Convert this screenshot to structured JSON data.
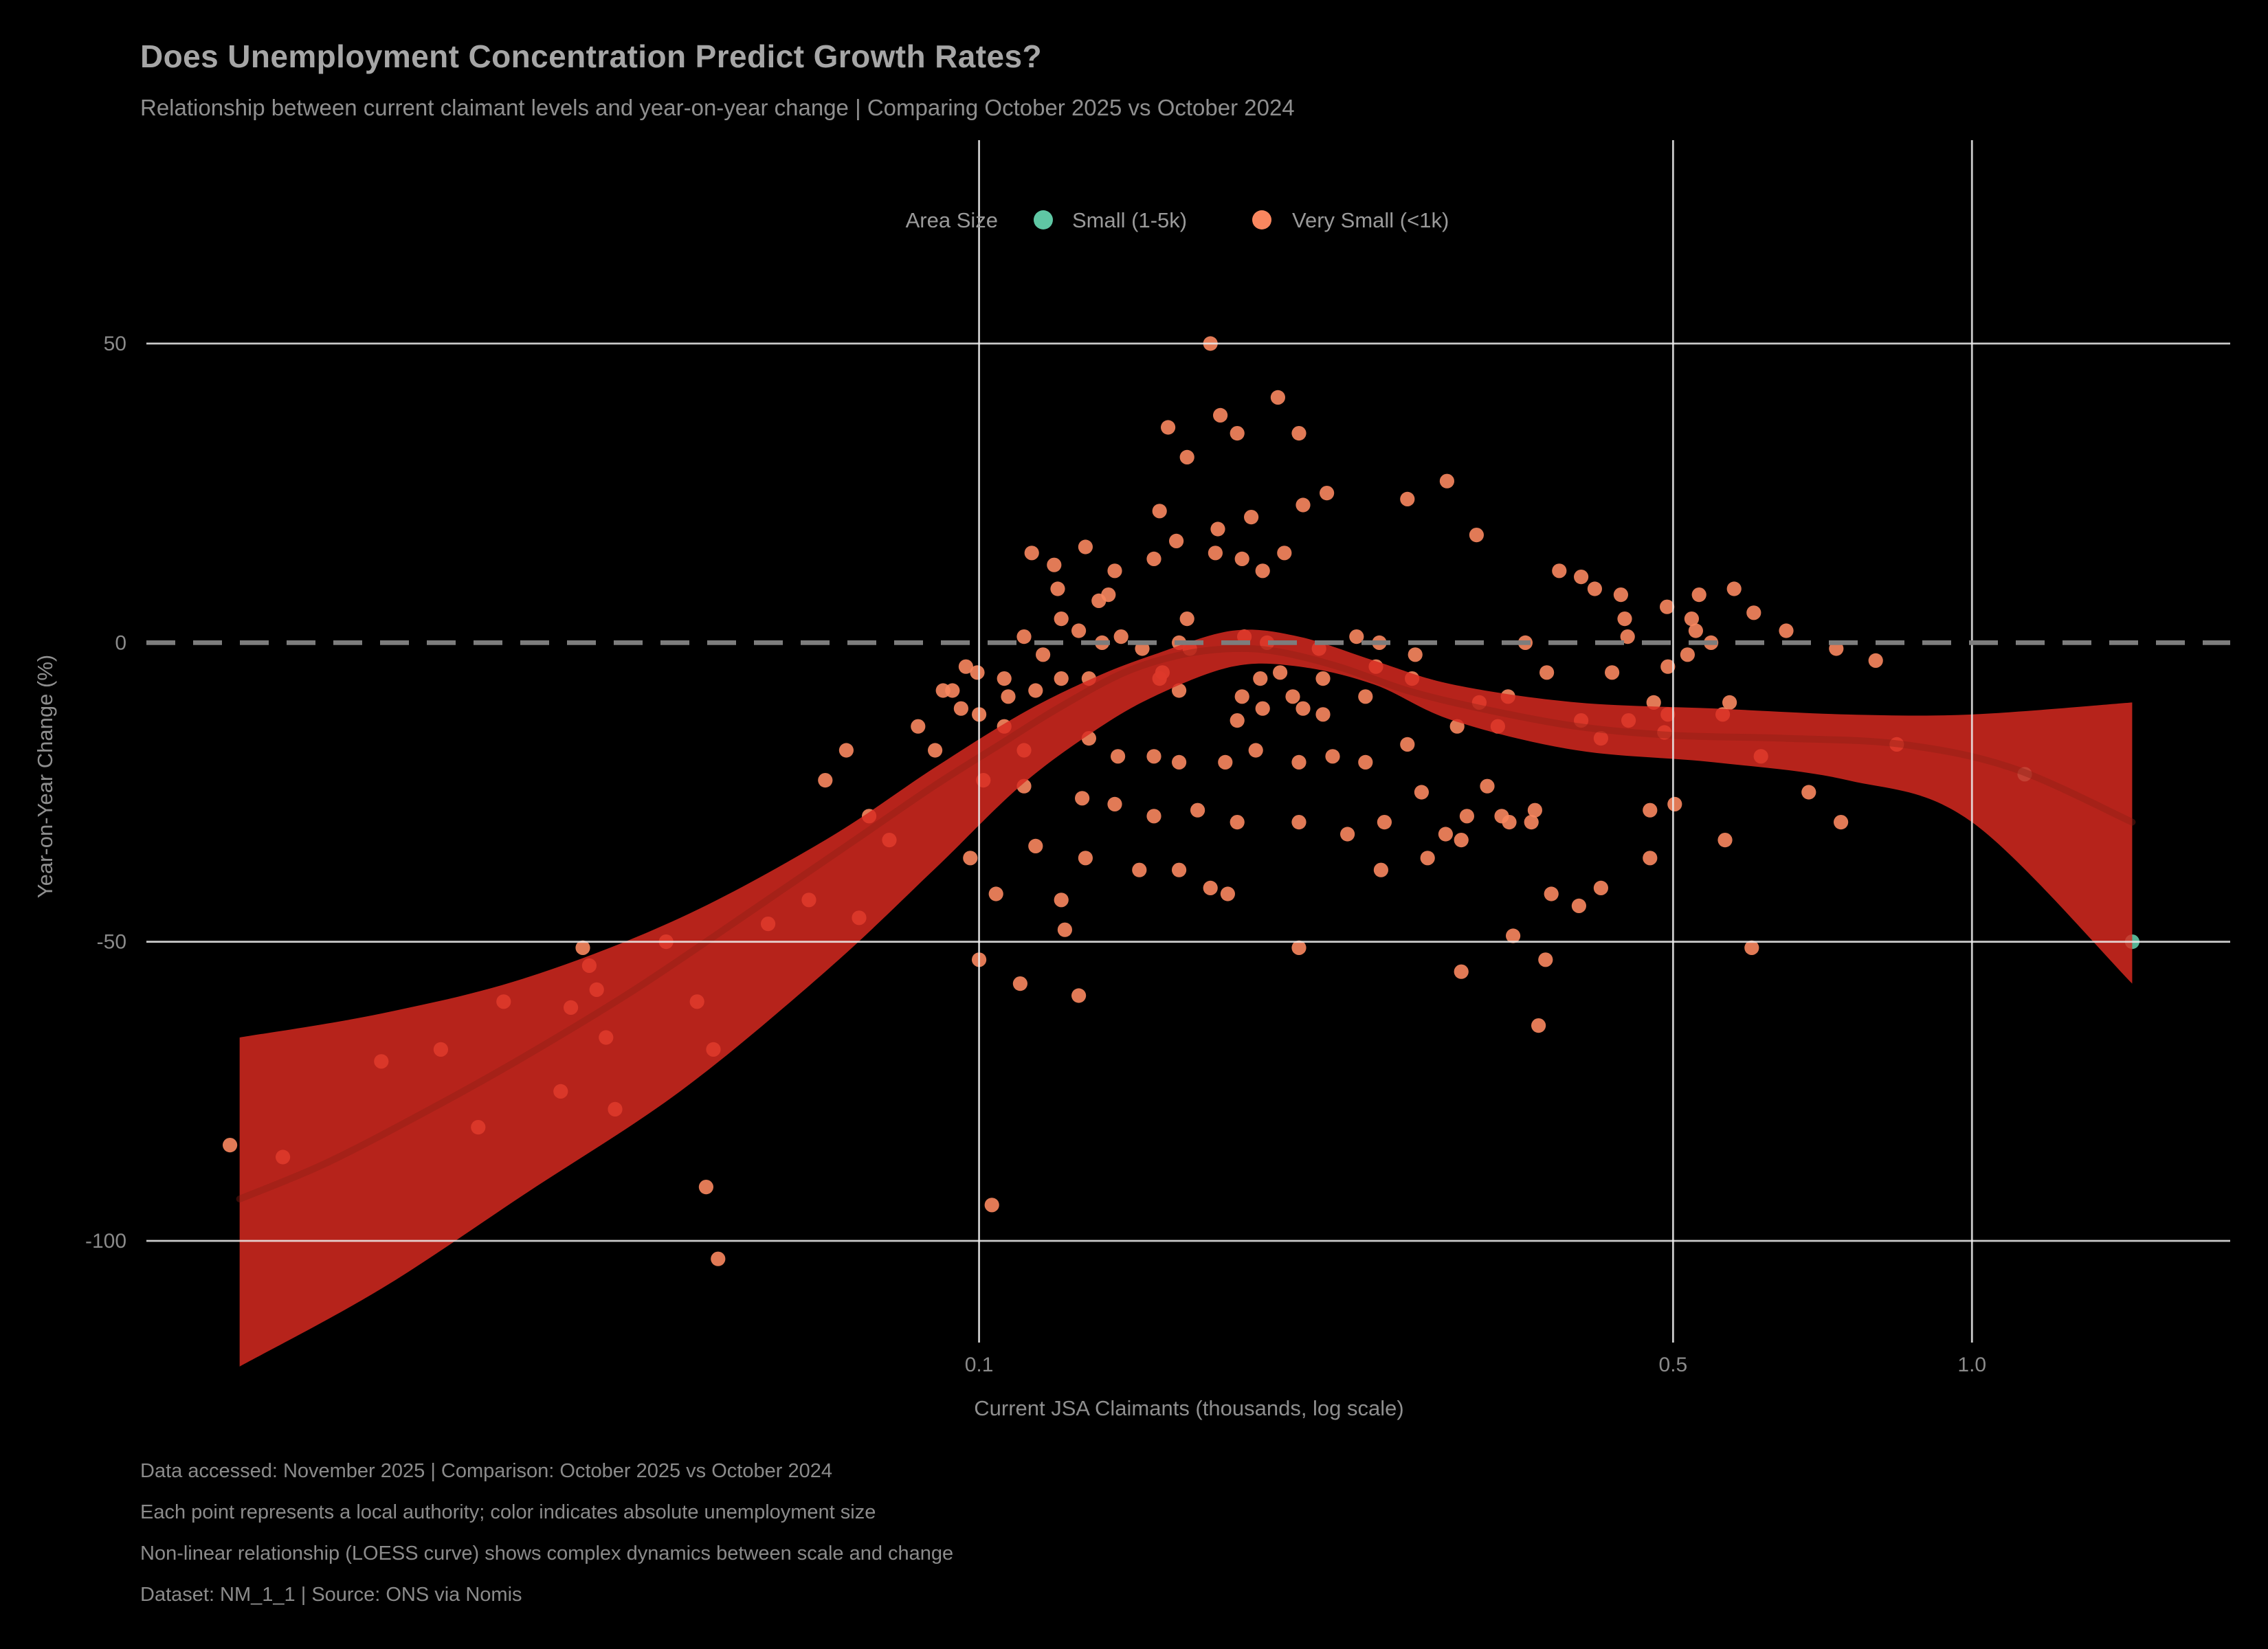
{
  "title": {
    "text": "Does Unemployment Concentration Predict Growth Rates?",
    "subtitle": "Relationship between current claimant levels and year-on-year change | Comparing October 2025 vs October 2024"
  },
  "legend": {
    "title": "Area Size",
    "items": [
      {
        "label": "Small (1-5k)",
        "color": "#5fc7a4"
      },
      {
        "label": "Very Small (<1k)",
        "color": "#f9875f"
      }
    ]
  },
  "colors": {
    "background": "#000000",
    "band": "#d92a20",
    "loess_line": "#8c1f15",
    "grid": "#ededed",
    "zero_line": "#7d7d7d",
    "title": "#a6a6a6",
    "text": "#8f8f8f",
    "tick": "#8a8a8a"
  },
  "chart_data": {
    "type": "scatter",
    "xlabel": "Current JSA Claimants (thousands, log scale)",
    "ylabel": "Year-on-Year Change (%)",
    "x_scale": "log",
    "grid": true,
    "legend_position": "top",
    "xlim": [
      0.0145,
      1.82
    ],
    "ylim": [
      -117,
      84
    ],
    "zero_line": 0,
    "x_ticks": [
      {
        "v": 0.1,
        "label": "0.1"
      },
      {
        "v": 0.5,
        "label": "0.5"
      },
      {
        "v": 1.0,
        "label": "1.0"
      }
    ],
    "y_ticks": [
      {
        "v": 50,
        "label": "50"
      },
      {
        "v": 0,
        "label": "0"
      },
      {
        "v": -50,
        "label": "-50"
      },
      {
        "v": -100,
        "label": "-100"
      }
    ],
    "series": [
      {
        "name": "Very Small (<1k)",
        "color": "#f9875f",
        "points": [
          [
            0.0176,
            -84
          ],
          [
            0.0199,
            -86
          ],
          [
            0.025,
            -70
          ],
          [
            0.0287,
            -68
          ],
          [
            0.0313,
            -81
          ],
          [
            0.0332,
            -60
          ],
          [
            0.0388,
            -61
          ],
          [
            0.0399,
            -51
          ],
          [
            0.0405,
            -54
          ],
          [
            0.0412,
            -58
          ],
          [
            0.0421,
            -66
          ],
          [
            0.0379,
            -75
          ],
          [
            0.043,
            -78
          ],
          [
            0.0484,
            -50
          ],
          [
            0.052,
            -60
          ],
          [
            0.054,
            -68
          ],
          [
            0.0531,
            -91
          ],
          [
            0.0546,
            -103
          ],
          [
            0.0613,
            -47
          ],
          [
            0.0674,
            -43
          ],
          [
            0.07,
            -23
          ],
          [
            0.0735,
            -18
          ],
          [
            0.0757,
            -46
          ],
          [
            0.0775,
            -29
          ],
          [
            0.0812,
            -33
          ],
          [
            0.0868,
            -14
          ],
          [
            0.0903,
            -18
          ],
          [
            0.092,
            -8
          ],
          [
            0.0959,
            -11
          ],
          [
            0.0996,
            -5
          ],
          [
            0.171,
            50
          ],
          [
            0.155,
            36
          ],
          [
            0.175,
            38
          ],
          [
            0.182,
            35
          ],
          [
            0.2,
            41
          ],
          [
            0.21,
            35
          ],
          [
            0.162,
            31
          ],
          [
            0.152,
            22
          ],
          [
            0.158,
            17
          ],
          [
            0.137,
            12
          ],
          [
            0.135,
            8
          ],
          [
            0.15,
            14
          ],
          [
            0.173,
            15
          ],
          [
            0.174,
            19
          ],
          [
            0.188,
            21
          ],
          [
            0.184,
            14
          ],
          [
            0.193,
            12
          ],
          [
            0.203,
            15
          ],
          [
            0.212,
            23
          ],
          [
            0.224,
            25
          ],
          [
            0.27,
            24
          ],
          [
            0.296,
            27
          ],
          [
            0.317,
            18
          ],
          [
            0.12,
            9
          ],
          [
            0.121,
            4
          ],
          [
            0.132,
            7
          ],
          [
            0.113,
            15
          ],
          [
            0.119,
            13
          ],
          [
            0.128,
            16
          ],
          [
            0.162,
            4
          ],
          [
            0.111,
            1
          ],
          [
            0.116,
            -2
          ],
          [
            0.126,
            2
          ],
          [
            0.133,
            0
          ],
          [
            0.139,
            1
          ],
          [
            0.146,
            -1
          ],
          [
            0.159,
            0
          ],
          [
            0.163,
            -1
          ],
          [
            0.185,
            1
          ],
          [
            0.195,
            0
          ],
          [
            0.22,
            -1
          ],
          [
            0.24,
            1
          ],
          [
            0.253,
            0
          ],
          [
            0.275,
            -2
          ],
          [
            0.384,
            12
          ],
          [
            0.404,
            11
          ],
          [
            0.417,
            9
          ],
          [
            0.443,
            8
          ],
          [
            0.447,
            4
          ],
          [
            0.45,
            1
          ],
          [
            0.355,
            0
          ],
          [
            0.493,
            6
          ],
          [
            0.531,
            8
          ],
          [
            0.522,
            4
          ],
          [
            0.527,
            2
          ],
          [
            0.546,
            0
          ],
          [
            0.517,
            -2
          ],
          [
            0.576,
            9
          ],
          [
            0.603,
            5
          ],
          [
            0.65,
            2
          ],
          [
            0.73,
            -1
          ],
          [
            0.8,
            -3
          ],
          [
            0.097,
            -4
          ],
          [
            0.106,
            -6
          ],
          [
            0.094,
            -8
          ],
          [
            0.1,
            -12
          ],
          [
            0.107,
            -9
          ],
          [
            0.114,
            -8
          ],
          [
            0.121,
            -6
          ],
          [
            0.129,
            -6
          ],
          [
            0.153,
            -5
          ],
          [
            0.152,
            -6
          ],
          [
            0.159,
            -8
          ],
          [
            0.184,
            -9
          ],
          [
            0.192,
            -6
          ],
          [
            0.201,
            -5
          ],
          [
            0.182,
            -13
          ],
          [
            0.193,
            -11
          ],
          [
            0.212,
            -11
          ],
          [
            0.222,
            -12
          ],
          [
            0.207,
            -9
          ],
          [
            0.222,
            -6
          ],
          [
            0.245,
            -9
          ],
          [
            0.251,
            -4
          ],
          [
            0.273,
            -6
          ],
          [
            0.106,
            -14
          ],
          [
            0.111,
            -18
          ],
          [
            0.129,
            -16
          ],
          [
            0.138,
            -19
          ],
          [
            0.15,
            -19
          ],
          [
            0.159,
            -20
          ],
          [
            0.177,
            -20
          ],
          [
            0.19,
            -18
          ],
          [
            0.21,
            -20
          ],
          [
            0.227,
            -19
          ],
          [
            0.245,
            -20
          ],
          [
            0.27,
            -17
          ],
          [
            0.279,
            -25
          ],
          [
            0.101,
            -23
          ],
          [
            0.111,
            -24
          ],
          [
            0.127,
            -26
          ],
          [
            0.137,
            -27
          ],
          [
            0.15,
            -29
          ],
          [
            0.166,
            -28
          ],
          [
            0.182,
            -30
          ],
          [
            0.21,
            -30
          ],
          [
            0.235,
            -32
          ],
          [
            0.256,
            -30
          ],
          [
            0.098,
            -36
          ],
          [
            0.114,
            -34
          ],
          [
            0.128,
            -36
          ],
          [
            0.145,
            -38
          ],
          [
            0.159,
            -38
          ],
          [
            0.171,
            -41
          ],
          [
            0.178,
            -42
          ],
          [
            0.104,
            -42
          ],
          [
            0.121,
            -43
          ],
          [
            0.254,
            -38
          ],
          [
            0.283,
            -36
          ],
          [
            0.1,
            -53
          ],
          [
            0.122,
            -48
          ],
          [
            0.11,
            -57
          ],
          [
            0.126,
            -59
          ],
          [
            0.21,
            -51
          ],
          [
            0.103,
            -94
          ],
          [
            0.373,
            -5
          ],
          [
            0.434,
            -5
          ],
          [
            0.494,
            -4
          ],
          [
            0.319,
            -10
          ],
          [
            0.341,
            -9
          ],
          [
            0.303,
            -14
          ],
          [
            0.333,
            -14
          ],
          [
            0.404,
            -13
          ],
          [
            0.423,
            -16
          ],
          [
            0.451,
            -13
          ],
          [
            0.478,
            -10
          ],
          [
            0.494,
            -12
          ],
          [
            0.49,
            -15
          ],
          [
            0.561,
            -12
          ],
          [
            0.613,
            -19
          ],
          [
            0.57,
            -10
          ],
          [
            0.325,
            -24
          ],
          [
            0.31,
            -29
          ],
          [
            0.295,
            -32
          ],
          [
            0.306,
            -33
          ],
          [
            0.336,
            -29
          ],
          [
            0.342,
            -30
          ],
          [
            0.363,
            -28
          ],
          [
            0.36,
            -30
          ],
          [
            0.474,
            -28
          ],
          [
            0.502,
            -27
          ],
          [
            0.474,
            -36
          ],
          [
            0.564,
            -33
          ],
          [
            0.685,
            -25
          ],
          [
            0.738,
            -30
          ],
          [
            0.377,
            -42
          ],
          [
            0.402,
            -44
          ],
          [
            0.423,
            -41
          ],
          [
            0.372,
            -53
          ],
          [
            0.306,
            -55
          ],
          [
            0.345,
            -49
          ],
          [
            0.366,
            -64
          ],
          [
            0.6,
            -51
          ],
          [
            0.84,
            -17
          ]
        ]
      },
      {
        "name": "Small (1-5k)",
        "color": "#5fc7a4",
        "points": [
          [
            1.13,
            -22
          ],
          [
            1.45,
            -50
          ]
        ]
      }
    ],
    "loess": {
      "center": [
        [
          0.018,
          -93
        ],
        [
          0.022,
          -87
        ],
        [
          0.028,
          -78
        ],
        [
          0.035,
          -69
        ],
        [
          0.045,
          -58
        ],
        [
          0.06,
          -44
        ],
        [
          0.075,
          -33
        ],
        [
          0.09,
          -24
        ],
        [
          0.105,
          -17
        ],
        [
          0.12,
          -11
        ],
        [
          0.14,
          -5
        ],
        [
          0.16,
          -2
        ],
        [
          0.18,
          -1
        ],
        [
          0.2,
          -1.5
        ],
        [
          0.23,
          -4
        ],
        [
          0.27,
          -8
        ],
        [
          0.32,
          -11
        ],
        [
          0.4,
          -14
        ],
        [
          0.5,
          -15.5
        ],
        [
          0.65,
          -16
        ],
        [
          0.85,
          -17
        ],
        [
          1.1,
          -21
        ],
        [
          1.45,
          -30
        ]
      ],
      "upper": [
        [
          0.018,
          -66
        ],
        [
          0.025,
          -62
        ],
        [
          0.035,
          -56
        ],
        [
          0.05,
          -46
        ],
        [
          0.07,
          -33
        ],
        [
          0.09,
          -21
        ],
        [
          0.11,
          -12
        ],
        [
          0.13,
          -6
        ],
        [
          0.15,
          -2
        ],
        [
          0.18,
          2
        ],
        [
          0.21,
          1
        ],
        [
          0.25,
          -3
        ],
        [
          0.3,
          -7
        ],
        [
          0.4,
          -10
        ],
        [
          0.55,
          -11
        ],
        [
          0.75,
          -12
        ],
        [
          1.0,
          -12
        ],
        [
          1.45,
          -10
        ]
      ],
      "lower": [
        [
          0.018,
          -121
        ],
        [
          0.025,
          -108
        ],
        [
          0.035,
          -92
        ],
        [
          0.05,
          -75
        ],
        [
          0.07,
          -55
        ],
        [
          0.09,
          -38
        ],
        [
          0.11,
          -24
        ],
        [
          0.13,
          -15
        ],
        [
          0.15,
          -9
        ],
        [
          0.18,
          -4
        ],
        [
          0.21,
          -4
        ],
        [
          0.25,
          -7
        ],
        [
          0.3,
          -13
        ],
        [
          0.4,
          -18
        ],
        [
          0.55,
          -20
        ],
        [
          0.75,
          -23
        ],
        [
          1.0,
          -30
        ],
        [
          1.45,
          -57
        ]
      ]
    }
  },
  "footer": {
    "lines": [
      "Data accessed: November 2025 | Comparison: October 2025 vs October 2024",
      "Each point represents a local authority; color indicates absolute unemployment size",
      "Non-linear relationship (LOESS curve) shows complex dynamics between scale and change",
      "Dataset: NM_1_1 | Source: ONS via Nomis"
    ]
  }
}
